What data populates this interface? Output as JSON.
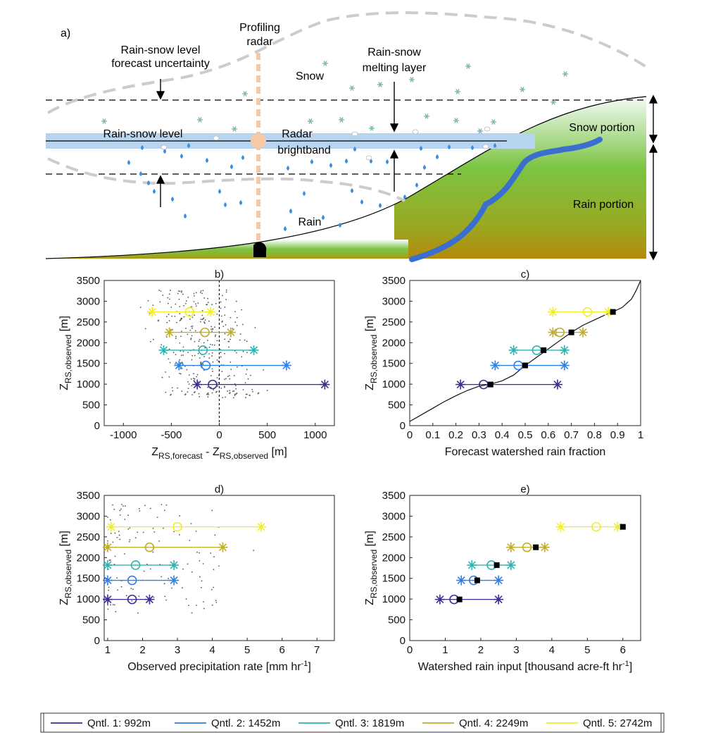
{
  "diagram": {
    "panel_label": "a)",
    "labels": {
      "uncert_l1": "Rain-snow  level",
      "uncert_l2": "forecast uncertainty",
      "radar_l1": "Profiling",
      "radar_l2": "radar",
      "snow": "Snow",
      "melt_l1": "Rain-snow",
      "melt_l2": "melting layer",
      "rs_level": "Rain-snow  level",
      "bb_l1": "Radar",
      "bb_l2": "brightband",
      "rain": "Rain",
      "snow_portion": "Snow portion",
      "rain_portion": "Rain portion"
    }
  },
  "colors": {
    "q1": "#3d2b8f",
    "q2": "#2f7fe6",
    "q3": "#2ab5b2",
    "q4": "#bfae2a",
    "q5": "#f2ee26"
  },
  "legend": [
    {
      "label": "Qntl. 1:  992m",
      "color": "#3d2b8f"
    },
    {
      "label": "Qntl. 2: 1452m",
      "color": "#2f7fe6"
    },
    {
      "label": "Qntl. 3: 1819m",
      "color": "#2ab5b2"
    },
    {
      "label": "Qntl. 4: 2249m",
      "color": "#bfae2a"
    },
    {
      "label": "Qntl. 5: 2742m",
      "color": "#f2ee26"
    }
  ],
  "chart_data": [
    {
      "id": "b",
      "type": "scatter",
      "title": "b)",
      "xlabel_main": "Z",
      "xlabel_sub1": "RS,forecast",
      "xlabel_mid": " - Z",
      "xlabel_sub2": "RS,observed",
      "xlabel_unit": " [m]",
      "ylabel_main": "Z",
      "ylabel_sub": "RS,observed",
      "ylabel_unit": " [m]",
      "xlim": [
        -1200,
        1200
      ],
      "ylim": [
        0,
        3500
      ],
      "xticks": [
        -1000,
        -500,
        0,
        500,
        1000
      ],
      "yticks": [
        0,
        500,
        1000,
        1500,
        2000,
        2500,
        3000,
        3500
      ],
      "vline": 0,
      "quantiles": [
        {
          "y": 992,
          "low": -230,
          "mid": -70,
          "high": 1100
        },
        {
          "y": 1452,
          "low": -420,
          "mid": -140,
          "high": 700
        },
        {
          "y": 1819,
          "low": -580,
          "mid": -170,
          "high": 360
        },
        {
          "y": 2249,
          "low": -520,
          "mid": -150,
          "high": 120
        },
        {
          "y": 2742,
          "low": -700,
          "mid": -310,
          "high": -90
        }
      ]
    },
    {
      "id": "c",
      "type": "line",
      "title": "c)",
      "xlabel": "Forecast watershed rain fraction",
      "ylabel_main": "Z",
      "ylabel_sub": "RS,observed",
      "ylabel_unit": " [m]",
      "xlim": [
        0,
        1
      ],
      "ylim": [
        0,
        3500
      ],
      "xticks": [
        0,
        0.1,
        0.2,
        0.3,
        0.4,
        0.5,
        0.6,
        0.7,
        0.8,
        0.9,
        1
      ],
      "yticks": [
        0,
        500,
        1000,
        1500,
        2000,
        2500,
        3000,
        3500
      ],
      "curve": [
        [
          0,
          100
        ],
        [
          0.05,
          260
        ],
        [
          0.1,
          420
        ],
        [
          0.15,
          580
        ],
        [
          0.2,
          720
        ],
        [
          0.25,
          850
        ],
        [
          0.3,
          950
        ],
        [
          0.35,
          1000
        ],
        [
          0.4,
          1080
        ],
        [
          0.45,
          1220
        ],
        [
          0.5,
          1450
        ],
        [
          0.55,
          1650
        ],
        [
          0.6,
          1850
        ],
        [
          0.65,
          2050
        ],
        [
          0.7,
          2250
        ],
        [
          0.75,
          2420
        ],
        [
          0.8,
          2550
        ],
        [
          0.85,
          2680
        ],
        [
          0.88,
          2742
        ],
        [
          0.92,
          2850
        ],
        [
          0.96,
          3050
        ],
        [
          0.98,
          3250
        ],
        [
          1.0,
          3500
        ]
      ],
      "quantiles": [
        {
          "y": 992,
          "low": 0.22,
          "mid": 0.32,
          "high": 0.64,
          "point": 0.35
        },
        {
          "y": 1452,
          "low": 0.37,
          "mid": 0.47,
          "high": 0.67,
          "point": 0.5
        },
        {
          "y": 1819,
          "low": 0.45,
          "mid": 0.55,
          "high": 0.67,
          "point": 0.58
        },
        {
          "y": 2249,
          "low": 0.62,
          "mid": 0.65,
          "high": 0.75,
          "point": 0.7
        },
        {
          "y": 2742,
          "low": 0.62,
          "mid": 0.77,
          "high": 0.86,
          "point": 0.88
        }
      ]
    },
    {
      "id": "d",
      "type": "scatter",
      "title": "d)",
      "xlabel_main": "Observed precipitation rate [mm hr",
      "xlabel_sup": "-1",
      "xlabel_end": "]",
      "ylabel_main": "Z",
      "ylabel_sub": "RS,observed",
      "ylabel_unit": " [m]",
      "xlim": [
        0.9,
        7.5
      ],
      "ylim": [
        0,
        3500
      ],
      "xticks": [
        1,
        2,
        3,
        4,
        5,
        6,
        7
      ],
      "yticks": [
        0,
        500,
        1000,
        1500,
        2000,
        2500,
        3000,
        3500
      ],
      "quantiles": [
        {
          "y": 992,
          "low": 1.0,
          "mid": 1.7,
          "high": 2.2
        },
        {
          "y": 1452,
          "low": 1.0,
          "mid": 1.7,
          "high": 2.9
        },
        {
          "y": 1819,
          "low": 1.0,
          "mid": 1.8,
          "high": 2.9
        },
        {
          "y": 2249,
          "low": 1.0,
          "mid": 2.2,
          "high": 4.3
        },
        {
          "y": 2742,
          "low": 1.1,
          "mid": 3.0,
          "high": 5.4
        }
      ]
    },
    {
      "id": "e",
      "type": "line",
      "title": "e)",
      "xlabel_main": "Watershed rain input [thousand acre-ft hr",
      "xlabel_sup": "-1",
      "xlabel_end": "]",
      "ylabel_main": "Z",
      "ylabel_sub": "RS,observed",
      "ylabel_unit": " [m]",
      "xlim": [
        0,
        6.5
      ],
      "ylim": [
        0,
        3500
      ],
      "xticks": [
        0,
        1,
        2,
        3,
        4,
        5,
        6
      ],
      "yticks": [
        0,
        500,
        1000,
        1500,
        2000,
        2500,
        3000,
        3500
      ],
      "quantiles": [
        {
          "y": 992,
          "low": 0.85,
          "mid": 1.25,
          "high": 2.5,
          "point": 1.4
        },
        {
          "y": 1452,
          "low": 1.45,
          "mid": 1.8,
          "high": 2.5,
          "point": 1.9
        },
        {
          "y": 1819,
          "low": 1.75,
          "mid": 2.3,
          "high": 2.85,
          "point": 2.45
        },
        {
          "y": 2249,
          "low": 2.85,
          "mid": 3.3,
          "high": 3.8,
          "point": 3.55
        },
        {
          "y": 2742,
          "low": 4.25,
          "mid": 5.25,
          "high": 5.85,
          "point": 6.0
        }
      ]
    }
  ]
}
